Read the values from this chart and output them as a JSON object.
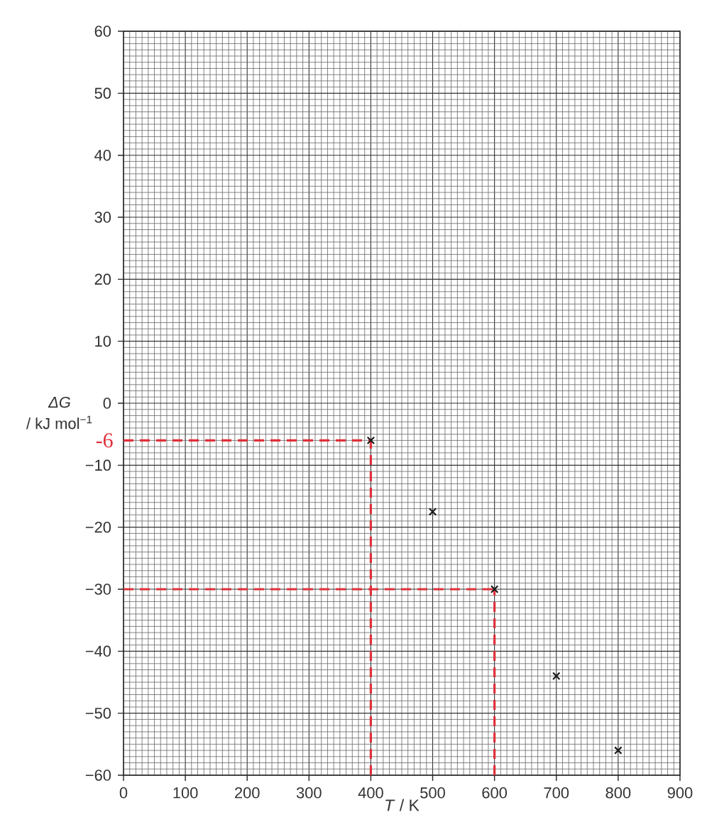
{
  "chart_data": {
    "type": "scatter",
    "xlabel": "*T* / K",
    "ylabel": "*ΔG* / kJ mol$^{−1}$",
    "x": [
      400,
      500,
      600,
      700,
      800
    ],
    "values": [
      -6,
      -17.5,
      -30,
      -44,
      -56
    ],
    "color": "#1a1a1a",
    "marker": "cross",
    "xlim": [
      0,
      900
    ],
    "ylim": [
      -60,
      60
    ],
    "xticks": [
      0,
      100,
      200,
      300,
      400,
      500,
      600,
      700,
      800,
      900
    ],
    "yticks": [
      {
        "value": -60,
        "label": "−60"
      },
      {
        "value": -50,
        "label": "−50"
      },
      {
        "value": -40,
        "label": "−40"
      },
      {
        "value": -30,
        "label": "−30"
      },
      {
        "value": -20,
        "label": "−20"
      },
      {
        "value": -10,
        "label": "−10"
      },
      0,
      10,
      20,
      30,
      40,
      50,
      60
    ],
    "grid": true,
    "ref_lines": [
      {
        "axis": "y",
        "value": -6,
        "label": "-6",
        "color": "#e0303a",
        "line_style": "dashed"
      },
      {
        "axis": "x",
        "value": 400,
        "color": "#e0303a",
        "line_style": "dashed"
      },
      {
        "axis": "y",
        "value": -30,
        "color": "#e0303a",
        "line_style": "dashed"
      },
      {
        "axis": "x",
        "value": 600,
        "color": "#e0303a",
        "line_style": "dashed"
      }
    ]
  }
}
